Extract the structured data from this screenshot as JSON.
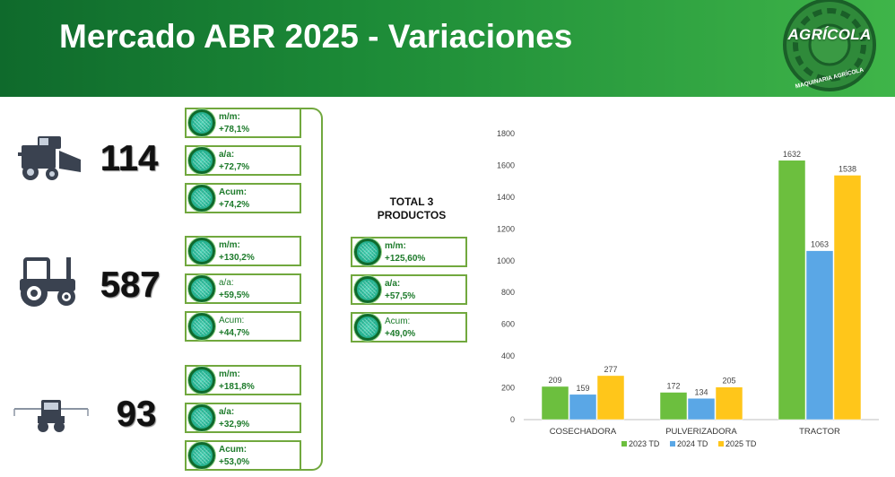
{
  "header": {
    "title": "Mercado ABR 2025 - Variaciones",
    "logo_text": "AGRÍCOLA",
    "logo_subtext": "MAQUINARIA AGRÍCOLA",
    "colors": {
      "dark": "#0f6a2c",
      "light": "#3fb549"
    }
  },
  "machines": [
    {
      "icon": "combine-harvester-icon",
      "units": "114",
      "variations": [
        {
          "label": "m/m:",
          "value": "+78,1%"
        },
        {
          "label": "a/a:",
          "value": "+72,7%"
        },
        {
          "label": "Acum:",
          "value": "+74,2%"
        }
      ]
    },
    {
      "icon": "tractor-icon",
      "units": "587",
      "variations": [
        {
          "label": "m/m:",
          "value": "+130,2%"
        },
        {
          "label": "a/a:",
          "value": "+59,5%"
        },
        {
          "label": "Acum:",
          "value": "+44,7%"
        }
      ]
    },
    {
      "icon": "sprayer-icon",
      "units": "93",
      "variations": [
        {
          "label": "m/m:",
          "value": "+181,8%"
        },
        {
          "label": "a/a:",
          "value": "+32,9%"
        },
        {
          "label": "Acum:",
          "value": "+53,0%"
        }
      ]
    }
  ],
  "total": {
    "title_line1": "TOTAL 3",
    "title_line2": "PRODUCTOS",
    "variations": [
      {
        "label": "m/m:",
        "value": "+125,60%"
      },
      {
        "label": "a/a:",
        "value": "+57,5%"
      },
      {
        "label": "Acum:",
        "value": "+49,0%"
      }
    ]
  },
  "chart_data": {
    "type": "bar",
    "title": "",
    "categories": [
      "COSECHADORA",
      "PULVERIZADORA",
      "TRACTOR"
    ],
    "series": [
      {
        "name": "2023 TD",
        "values": [
          209,
          172,
          1632
        ],
        "color": "#6cbf3e"
      },
      {
        "name": "2024 TD",
        "values": [
          159,
          134,
          1063
        ],
        "color": "#5aa7e6"
      },
      {
        "name": "2025 TD",
        "values": [
          277,
          205,
          1538
        ],
        "color": "#ffc61a"
      }
    ],
    "ylim": [
      0,
      1800
    ],
    "yticks": [
      0,
      200,
      400,
      600,
      800,
      1000,
      1200,
      1400,
      1600,
      1800
    ],
    "grid": false,
    "legend": "bottom",
    "data_labels": true
  }
}
